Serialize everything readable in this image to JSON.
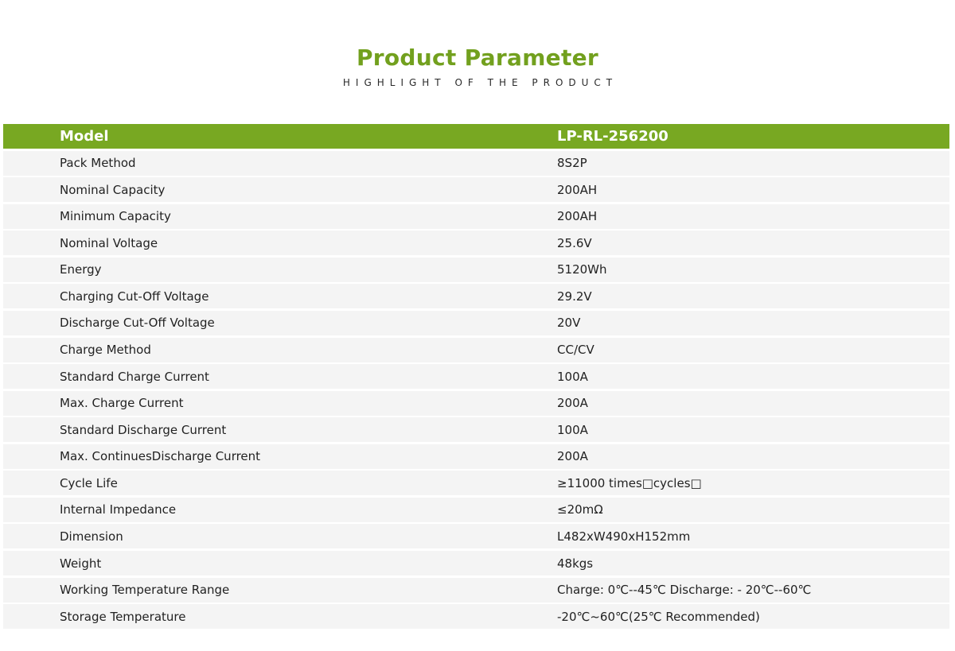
{
  "heading": {
    "title": "Product Parameter",
    "subtitle": "HIGHLIGHT OF THE PRODUCT"
  },
  "colors": {
    "accent": "#78a822",
    "title": "#72a01e",
    "row_bg": "#f4f4f4"
  },
  "table": {
    "header": {
      "label": "Model",
      "value": "LP-RL-256200"
    },
    "rows": [
      {
        "label": "Pack Method",
        "value": "8S2P"
      },
      {
        "label": "Nominal Capacity",
        "value": "200AH"
      },
      {
        "label": "Minimum Capacity",
        "value": "200AH"
      },
      {
        "label": "Nominal Voltage",
        "value": "25.6V"
      },
      {
        "label": "Energy",
        "value": "5120Wh"
      },
      {
        "label": "Charging Cut-Off Voltage",
        "value": "29.2V"
      },
      {
        "label": "Discharge Cut-Off Voltage",
        "value": "20V"
      },
      {
        "label": "Charge Method",
        "value": "CC/CV"
      },
      {
        "label": "Standard Charge Current",
        "value": "100A"
      },
      {
        "label": "Max. Charge Current",
        "value": "200A"
      },
      {
        "label": "Standard Discharge Current",
        "value": "100A"
      },
      {
        "label": "Max. ContinuesDischarge Current",
        "value": "200A"
      },
      {
        "label": "Cycle Life",
        "value": "≥11000 times□cycles□"
      },
      {
        "label": "Internal Impedance",
        "value": "≤20mΩ"
      },
      {
        "label": "Dimension",
        "value": "L482xW490xH152mm"
      },
      {
        "label": "Weight",
        "value": "48kgs"
      },
      {
        "label": "Working Temperature Range",
        "value": "Charge: 0℃--45℃ Discharge: - 20℃--60℃"
      },
      {
        "label": "Storage Temperature",
        "value": "-20℃~60℃(25℃ Recommended)"
      }
    ]
  }
}
